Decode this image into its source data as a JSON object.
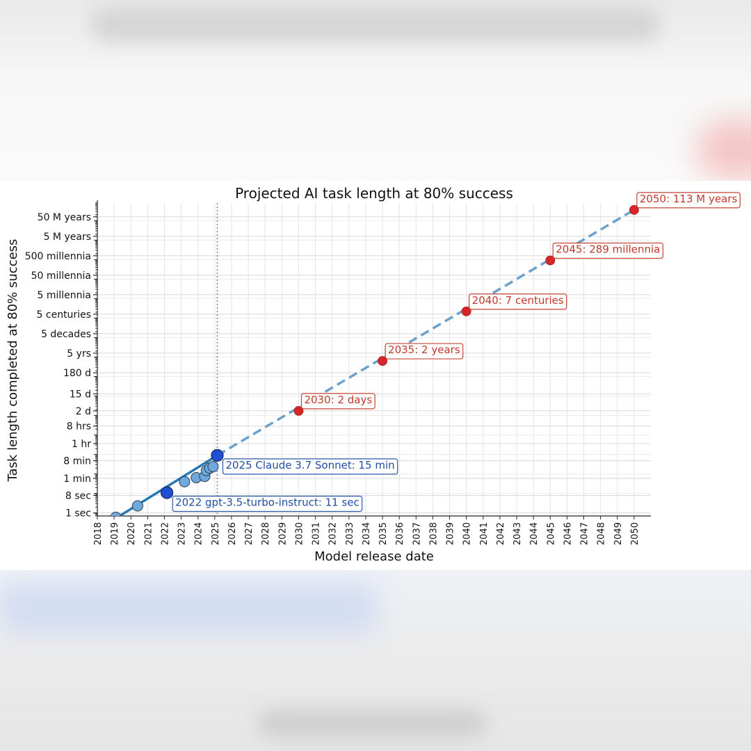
{
  "chart_data": {
    "type": "scatter",
    "title": "Projected AI task length at 80% success",
    "xlabel": "Model release date",
    "ylabel": "Task length completed at 80% success",
    "y_scale": "log",
    "xlim": [
      2018,
      2051
    ],
    "x_ticks": [
      "2018",
      "2019",
      "2020",
      "2021",
      "2022",
      "2023",
      "2024",
      "2025",
      "2026",
      "2027",
      "2028",
      "2029",
      "2030",
      "2031",
      "2032",
      "2033",
      "2034",
      "2035",
      "2036",
      "2037",
      "2038",
      "2039",
      "2040",
      "2041",
      "2042",
      "2043",
      "2044",
      "2045",
      "2046",
      "2047",
      "2048",
      "2049",
      "2050"
    ],
    "y_ticks": [
      {
        "label": "1 sec",
        "seconds": 1
      },
      {
        "label": "8 sec",
        "seconds": 8
      },
      {
        "label": "1 min",
        "seconds": 60
      },
      {
        "label": "8 min",
        "seconds": 480
      },
      {
        "label": "1 hr",
        "seconds": 3600
      },
      {
        "label": "8 hrs",
        "seconds": 28800
      },
      {
        "label": "2 d",
        "seconds": 172800
      },
      {
        "label": "15 d",
        "seconds": 1296000
      },
      {
        "label": "180 d",
        "seconds": 15552000
      },
      {
        "label": "5 yrs",
        "seconds": 157680000
      },
      {
        "label": "5 decades",
        "seconds": 1576800000
      },
      {
        "label": "5 centuries",
        "seconds": 15768000000
      },
      {
        "label": "5 millennia",
        "seconds": 157680000000
      },
      {
        "label": "50 millennia",
        "seconds": 1576800000000
      },
      {
        "label": "500 millennia",
        "seconds": 15768000000000
      },
      {
        "label": "5 M years",
        "seconds": 157680000000000
      },
      {
        "label": "50 M years",
        "seconds": 1576800000000000
      }
    ],
    "ylim_seconds": [
      0.7,
      8000000000000000
    ],
    "grid": true,
    "reference_line": {
      "x": 2025.15,
      "style": "dotted"
    },
    "series": [
      {
        "role": "observed",
        "color": "#6fa8dc",
        "points": [
          {
            "x": 2019.1,
            "y": 0.6
          },
          {
            "x": 2020.4,
            "y": 2.3
          },
          {
            "x": 2022.15,
            "y": 11
          },
          {
            "x": 2023.2,
            "y": 40
          },
          {
            "x": 2023.9,
            "y": 65
          },
          {
            "x": 2024.4,
            "y": 75
          },
          {
            "x": 2024.5,
            "y": 150
          },
          {
            "x": 2024.7,
            "y": 200
          },
          {
            "x": 2024.9,
            "y": 240
          },
          {
            "x": 2025.15,
            "y": 900
          }
        ]
      },
      {
        "role": "highlight",
        "color": "#1f4fd6",
        "points": [
          {
            "x": 2022.15,
            "y": 11
          },
          {
            "x": 2025.15,
            "y": 900
          }
        ]
      },
      {
        "role": "trend",
        "color": "#2878b5",
        "points": [
          {
            "x": 2019.2,
            "y": 0.6
          },
          {
            "x": 2025.15,
            "y": 900
          }
        ]
      },
      {
        "role": "projection",
        "color": "#5a97c8",
        "style": "dashed",
        "points": [
          {
            "x": 2025.15,
            "y": 900
          },
          {
            "x": 2050,
            "y": 3560000000000000
          }
        ]
      },
      {
        "role": "projected-milestones",
        "color": "#d62728",
        "points": [
          {
            "x": 2030,
            "y": 172800
          },
          {
            "x": 2035,
            "y": 63072000
          },
          {
            "x": 2040,
            "y": 22075200000
          },
          {
            "x": 2045,
            "y": 9113904000000
          },
          {
            "x": 2050,
            "y": 3563568000000000
          }
        ]
      }
    ],
    "annotations": [
      {
        "text": "2022 gpt-3.5-turbo-instruct: 11 sec",
        "x": 2022.15,
        "y": 11,
        "color": "#1f4ea3"
      },
      {
        "text": "2025 Claude 3.7 Sonnet: 15 min",
        "x": 2025.15,
        "y": 900,
        "color": "#1f4ea3"
      },
      {
        "text": "2030: 2 days",
        "x": 2030,
        "y": 172800,
        "color": "#c0392b"
      },
      {
        "text": "2035: 2 years",
        "x": 2035,
        "y": 63072000,
        "color": "#c0392b"
      },
      {
        "text": "2040: 7 centuries",
        "x": 2040,
        "y": 22075200000,
        "color": "#c0392b"
      },
      {
        "text": "2045: 289 millennia",
        "x": 2045,
        "y": 9113904000000,
        "color": "#c0392b"
      },
      {
        "text": "2050: 113 M years",
        "x": 2050,
        "y": 3563568000000000,
        "color": "#c0392b"
      }
    ]
  }
}
